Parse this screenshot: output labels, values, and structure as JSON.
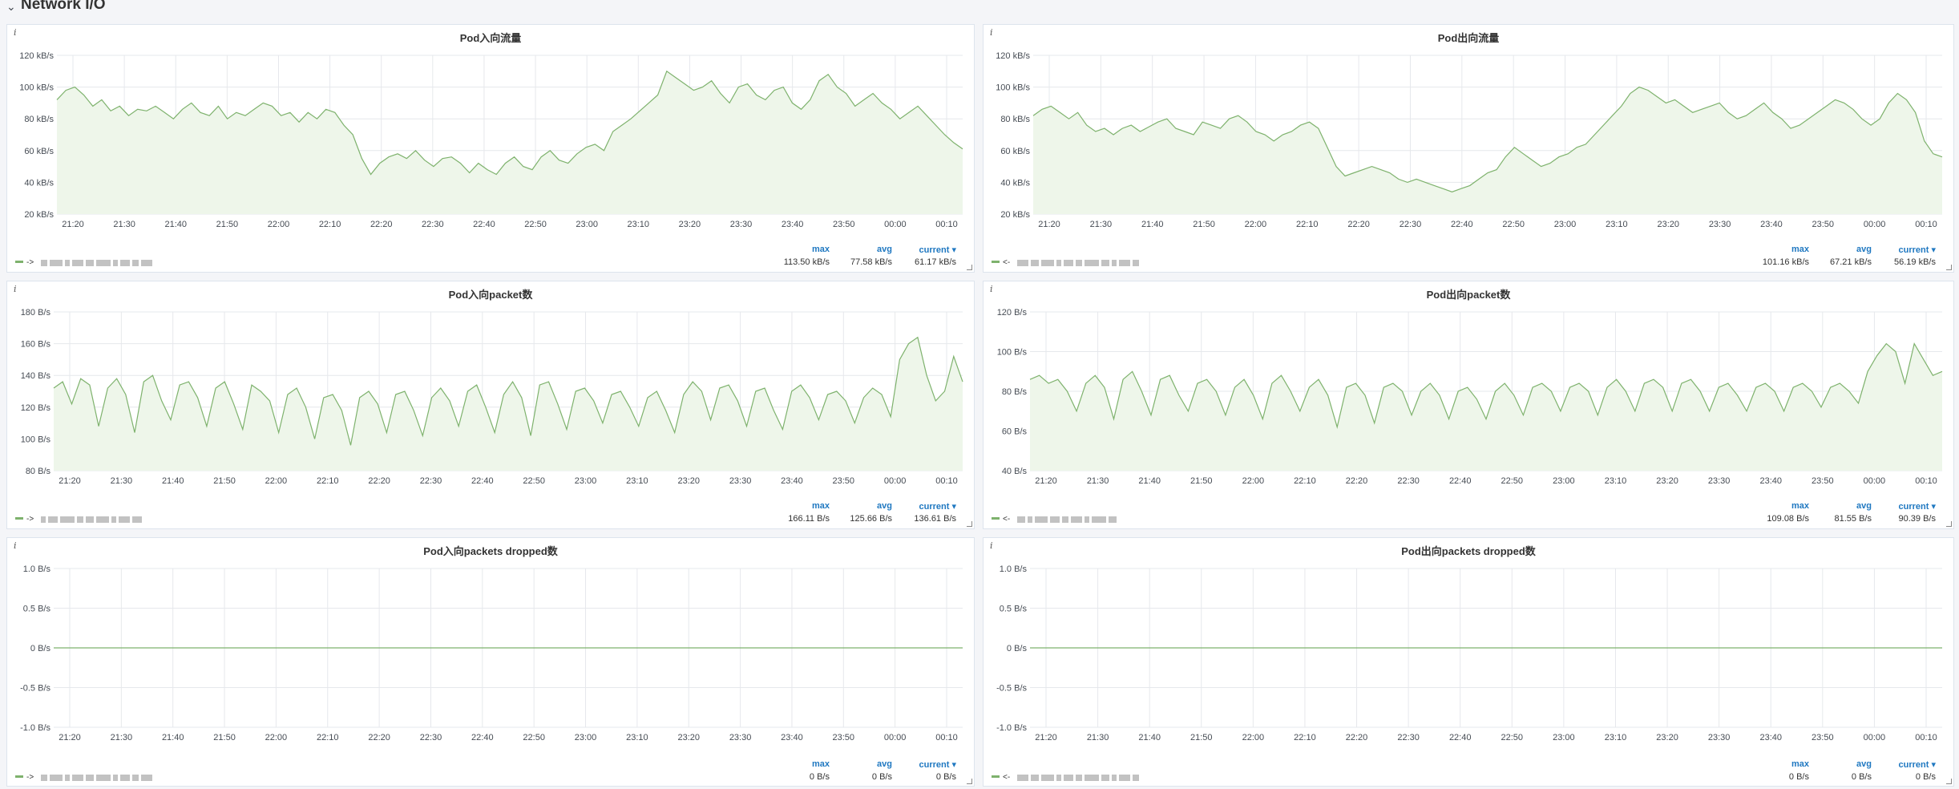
{
  "row": {
    "title": "Network I/O",
    "chevron_icon": "chevron-down-icon"
  },
  "legend_headers": {
    "max": "max",
    "avg": "avg",
    "current": "current ▾"
  },
  "colors": {
    "series": "#7eb26d",
    "fill": "#eef6ea",
    "grid": "#e6e8ec"
  },
  "x_ticks": [
    "21:20",
    "21:30",
    "21:40",
    "21:50",
    "22:00",
    "22:10",
    "22:20",
    "22:30",
    "22:40",
    "22:50",
    "23:00",
    "23:10",
    "23:20",
    "23:30",
    "23:40",
    "23:50",
    "00:00",
    "00:10"
  ],
  "panels": [
    {
      "title": "Pod入向流量",
      "info": "i",
      "y_ticks": [
        "120 kB/s",
        "100 kB/s",
        "80 kB/s",
        "60 kB/s",
        "40 kB/s",
        "20 kB/s"
      ],
      "ylim": [
        20,
        120
      ],
      "legend": {
        "prefix": "->",
        "max": "113.50 kB/s",
        "avg": "77.58 kB/s",
        "current": "61.17 kB/s"
      },
      "chart_data": {
        "type": "area",
        "title": "Pod入向流量",
        "values": [
          92,
          98,
          100,
          95,
          88,
          92,
          85,
          88,
          82,
          86,
          85,
          88,
          84,
          80,
          86,
          90,
          84,
          82,
          88,
          80,
          84,
          82,
          86,
          90,
          88,
          82,
          84,
          78,
          84,
          80,
          86,
          84,
          76,
          70,
          55,
          45,
          52,
          56,
          58,
          55,
          60,
          54,
          50,
          55,
          56,
          52,
          46,
          52,
          48,
          45,
          52,
          56,
          50,
          48,
          56,
          60,
          54,
          52,
          58,
          62,
          64,
          60,
          72,
          76,
          80,
          85,
          90,
          95,
          110,
          106,
          102,
          98,
          100,
          104,
          96,
          90,
          100,
          102,
          95,
          92,
          98,
          100,
          90,
          86,
          92,
          104,
          108,
          100,
          96,
          88,
          92,
          96,
          90,
          86,
          80,
          84,
          88,
          82,
          76,
          70,
          65,
          61
        ]
      }
    },
    {
      "title": "Pod出向流量",
      "info": "i",
      "y_ticks": [
        "120 kB/s",
        "100 kB/s",
        "80 kB/s",
        "60 kB/s",
        "40 kB/s",
        "20 kB/s"
      ],
      "ylim": [
        20,
        120
      ],
      "legend": {
        "prefix": "<-",
        "max": "101.16 kB/s",
        "avg": "67.21 kB/s",
        "current": "56.19 kB/s"
      },
      "chart_data": {
        "type": "area",
        "title": "Pod出向流量",
        "values": [
          82,
          86,
          88,
          84,
          80,
          84,
          76,
          72,
          74,
          70,
          74,
          76,
          72,
          75,
          78,
          80,
          74,
          72,
          70,
          78,
          76,
          74,
          80,
          82,
          78,
          72,
          70,
          66,
          70,
          72,
          76,
          78,
          74,
          62,
          50,
          44,
          46,
          48,
          50,
          48,
          46,
          42,
          40,
          42,
          40,
          38,
          36,
          34,
          36,
          38,
          42,
          46,
          48,
          56,
          62,
          58,
          54,
          50,
          52,
          56,
          58,
          62,
          64,
          70,
          76,
          82,
          88,
          96,
          100,
          98,
          94,
          90,
          92,
          88,
          84,
          86,
          88,
          90,
          84,
          80,
          82,
          86,
          90,
          84,
          80,
          74,
          76,
          80,
          84,
          88,
          92,
          90,
          86,
          80,
          76,
          80,
          90,
          96,
          92,
          84,
          66,
          58,
          56
        ]
      }
    },
    {
      "title": "Pod入向packet数",
      "info": "i",
      "y_ticks": [
        "180 B/s",
        "160 B/s",
        "140 B/s",
        "120 B/s",
        "100 B/s",
        "80 B/s"
      ],
      "ylim": [
        80,
        180
      ],
      "legend": {
        "prefix": "->",
        "max": "166.11 B/s",
        "avg": "125.66 B/s",
        "current": "136.61 B/s"
      },
      "chart_data": {
        "type": "area",
        "title": "Pod入向packet数",
        "values": [
          132,
          136,
          122,
          138,
          134,
          108,
          132,
          138,
          128,
          104,
          136,
          140,
          124,
          112,
          134,
          136,
          126,
          108,
          132,
          136,
          122,
          106,
          134,
          130,
          124,
          104,
          128,
          132,
          120,
          100,
          126,
          128,
          118,
          96,
          126,
          130,
          122,
          104,
          128,
          130,
          118,
          102,
          126,
          132,
          124,
          108,
          130,
          134,
          120,
          104,
          128,
          136,
          126,
          102,
          134,
          136,
          122,
          106,
          130,
          132,
          124,
          110,
          128,
          130,
          120,
          108,
          126,
          130,
          118,
          104,
          128,
          136,
          130,
          112,
          132,
          134,
          124,
          108,
          130,
          132,
          118,
          106,
          130,
          134,
          126,
          112,
          128,
          130,
          124,
          110,
          126,
          132,
          128,
          114,
          150,
          160,
          164,
          140,
          124,
          130,
          152,
          136
        ]
      }
    },
    {
      "title": "Pod出向packet数",
      "info": "i",
      "y_ticks": [
        "120 B/s",
        "100 B/s",
        "80 B/s",
        "60 B/s",
        "40 B/s"
      ],
      "ylim": [
        40,
        120
      ],
      "legend": {
        "prefix": "<-",
        "max": "109.08 B/s",
        "avg": "81.55 B/s",
        "current": "90.39 B/s"
      },
      "chart_data": {
        "type": "area",
        "title": "Pod出向packet数",
        "values": [
          86,
          88,
          84,
          86,
          80,
          70,
          84,
          88,
          82,
          66,
          86,
          90,
          80,
          68,
          86,
          88,
          78,
          70,
          84,
          86,
          80,
          68,
          82,
          86,
          78,
          66,
          84,
          88,
          80,
          70,
          82,
          86,
          78,
          62,
          82,
          84,
          78,
          64,
          82,
          84,
          80,
          68,
          80,
          84,
          78,
          66,
          80,
          82,
          76,
          66,
          80,
          84,
          78,
          68,
          82,
          84,
          80,
          70,
          82,
          84,
          80,
          68,
          82,
          86,
          80,
          70,
          84,
          86,
          82,
          70,
          84,
          86,
          80,
          70,
          82,
          84,
          78,
          70,
          82,
          84,
          80,
          70,
          82,
          84,
          80,
          72,
          82,
          84,
          80,
          74,
          90,
          98,
          104,
          100,
          84,
          104,
          96,
          88,
          90
        ]
      }
    },
    {
      "title": "Pod入向packets dropped数",
      "info": "i",
      "y_ticks": [
        "1.0 B/s",
        "0.5 B/s",
        "0 B/s",
        "-0.5 B/s",
        "-1.0 B/s"
      ],
      "ylim": [
        -1,
        1
      ],
      "legend": {
        "prefix": "->",
        "max": "0 B/s",
        "avg": "0 B/s",
        "current": "0 B/s"
      },
      "chart_data": {
        "type": "line",
        "title": "Pod入向packets dropped数",
        "values": [
          0,
          0
        ]
      }
    },
    {
      "title": "Pod出向packets dropped数",
      "info": "i",
      "y_ticks": [
        "1.0 B/s",
        "0.5 B/s",
        "0 B/s",
        "-0.5 B/s",
        "-1.0 B/s"
      ],
      "ylim": [
        -1,
        1
      ],
      "legend": {
        "prefix": "<-",
        "max": "0 B/s",
        "avg": "0 B/s",
        "current": "0 B/s"
      },
      "chart_data": {
        "type": "line",
        "title": "Pod出向packets dropped数",
        "values": [
          0,
          0
        ]
      }
    }
  ]
}
